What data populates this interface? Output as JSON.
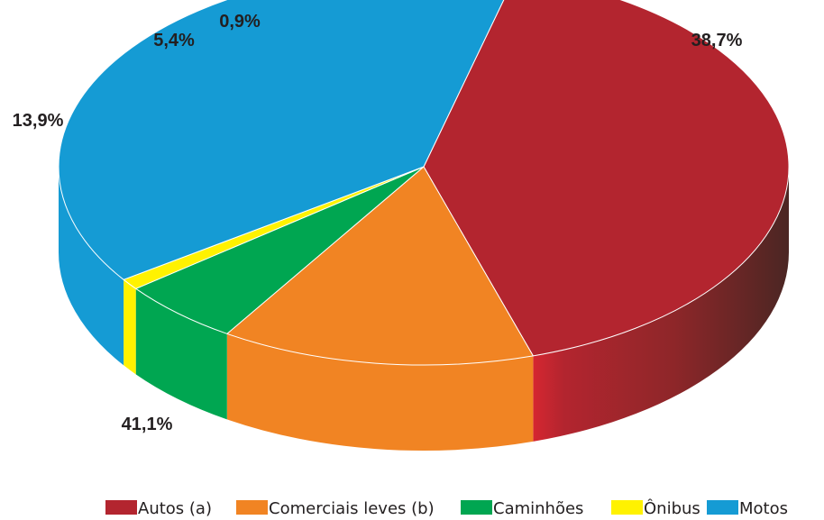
{
  "chart_data": {
    "type": "pie",
    "style": "3d",
    "legend_position": "bottom-right",
    "slices": [
      {
        "name": "Autos (a)",
        "value": 41.1,
        "label": "41,1%",
        "color": "#b3252f",
        "side_light": "#d52630",
        "side_dark": "#4b2623"
      },
      {
        "name": "Comerciais leves (b)",
        "value": 13.9,
        "label": "13,9%",
        "color": "#f18423"
      },
      {
        "name": "Caminhões",
        "value": 5.4,
        "label": "5,4%",
        "color": "#00a651"
      },
      {
        "name": "Ônibus",
        "value": 0.9,
        "label": "0,9%",
        "color": "#fff200"
      },
      {
        "name": "Motos",
        "value": 38.7,
        "label": "38,7%",
        "color": "#159bd4"
      }
    ]
  }
}
